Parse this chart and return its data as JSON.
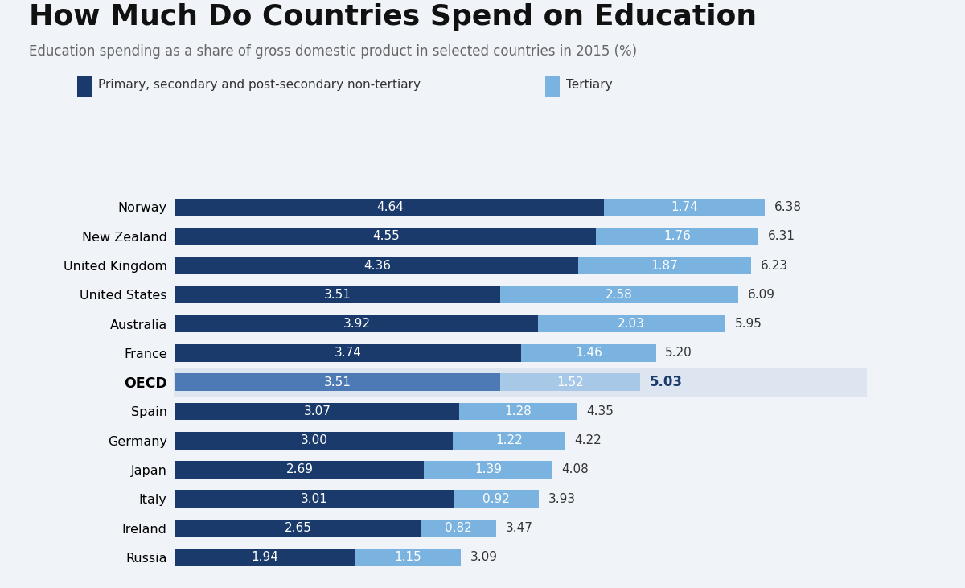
{
  "title": "How Much Do Countries Spend on Education",
  "subtitle": "Education spending as a share of gross domestic product in selected countries in 2015 (%)",
  "countries": [
    "Norway",
    "New Zealand",
    "United Kingdom",
    "United States",
    "Australia",
    "France",
    "OECD",
    "Spain",
    "Germany",
    "Japan",
    "Italy",
    "Ireland",
    "Russia"
  ],
  "primary_values": [
    4.64,
    4.55,
    4.36,
    3.51,
    3.92,
    3.74,
    3.51,
    3.07,
    3.0,
    2.69,
    3.01,
    2.65,
    1.94
  ],
  "tertiary_values": [
    1.74,
    1.76,
    1.87,
    2.58,
    2.03,
    1.46,
    1.52,
    1.28,
    1.22,
    1.39,
    0.92,
    0.82,
    1.15
  ],
  "totals": [
    "6.38",
    "6.31",
    "6.23",
    "6.09",
    "5.95",
    "5.20",
    "5.03",
    "4.35",
    "4.22",
    "4.08",
    "3.93",
    "3.47",
    "3.09"
  ],
  "primary_color": "#1a3a6b",
  "tertiary_color": "#7ab3e0",
  "oecd_primary_color": "#4d7ab5",
  "oecd_tertiary_color": "#a8c8e8",
  "oecd_bg_color": "#dde6f0",
  "background_color": "#f0f4f8",
  "bar_height": 0.6,
  "legend_primary_label": "Primary, secondary and post-secondary non-tertiary",
  "legend_tertiary_label": "Tertiary",
  "title_fontsize": 26,
  "subtitle_fontsize": 12,
  "label_fontsize": 11.5,
  "bar_text_fontsize": 11,
  "total_fontsize": 11,
  "oecd_index": 6
}
